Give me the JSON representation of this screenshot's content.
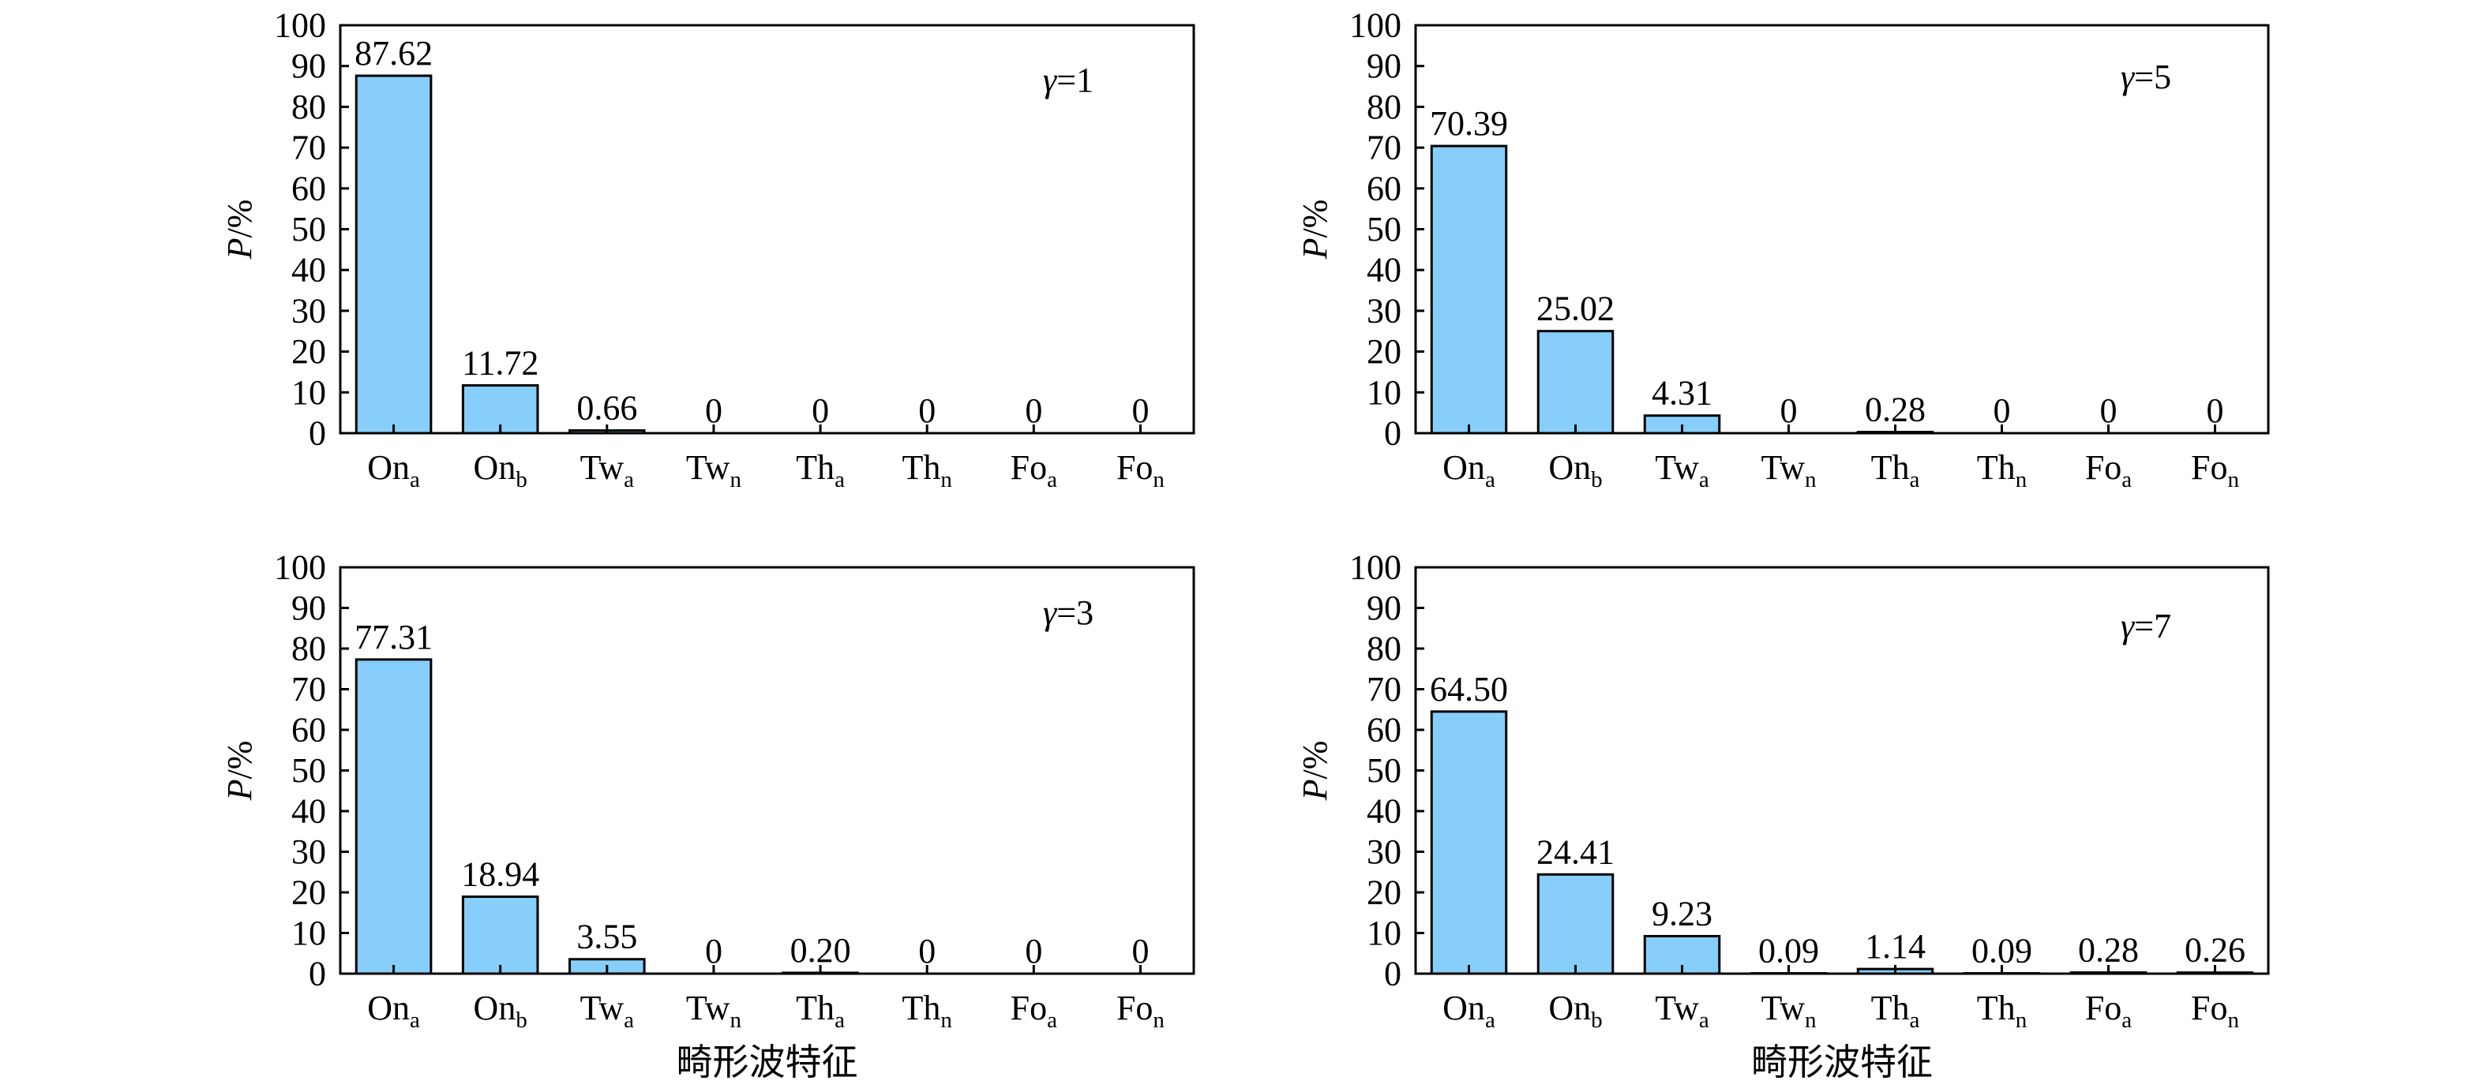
{
  "colors": {
    "bar_fill": "#87cefa",
    "bar_stroke": "#000000",
    "axis": "#000000",
    "background": "#ffffff"
  },
  "chart_data": [
    {
      "type": "bar",
      "annotation": {
        "symbol": "γ",
        "text": "=1"
      },
      "categories": [
        {
          "base": "On",
          "sub": "a"
        },
        {
          "base": "On",
          "sub": "b"
        },
        {
          "base": "Tw",
          "sub": "a"
        },
        {
          "base": "Tw",
          "sub": "n"
        },
        {
          "base": "Th",
          "sub": "a"
        },
        {
          "base": "Th",
          "sub": "n"
        },
        {
          "base": "Fo",
          "sub": "a"
        },
        {
          "base": "Fo",
          "sub": "n"
        }
      ],
      "values": [
        87.62,
        11.72,
        0.66,
        0,
        0,
        0,
        0,
        0
      ],
      "labels": [
        "87.62",
        "11.72",
        "0.66",
        "0",
        "0",
        "0",
        "0",
        "0"
      ],
      "ylabel": {
        "italic": "P",
        "rest": "/%"
      },
      "xlabel": "",
      "ylim": [
        0,
        100
      ],
      "yticks": [
        0,
        10,
        20,
        30,
        40,
        50,
        60,
        70,
        80,
        90,
        100
      ],
      "grid": false
    },
    {
      "type": "bar",
      "annotation": {
        "symbol": "γ",
        "text": "=5"
      },
      "categories": [
        {
          "base": "On",
          "sub": "a"
        },
        {
          "base": "On",
          "sub": "b"
        },
        {
          "base": "Tw",
          "sub": "a"
        },
        {
          "base": "Tw",
          "sub": "n"
        },
        {
          "base": "Th",
          "sub": "a"
        },
        {
          "base": "Th",
          "sub": "n"
        },
        {
          "base": "Fo",
          "sub": "a"
        },
        {
          "base": "Fo",
          "sub": "n"
        }
      ],
      "values": [
        70.39,
        25.02,
        4.31,
        0,
        0.28,
        0,
        0,
        0
      ],
      "labels": [
        "70.39",
        "25.02",
        "4.31",
        "0",
        "0.28",
        "0",
        "0",
        "0"
      ],
      "ylabel": {
        "italic": "P",
        "rest": "/%"
      },
      "xlabel": "",
      "ylim": [
        0,
        100
      ],
      "yticks": [
        0,
        10,
        20,
        30,
        40,
        50,
        60,
        70,
        80,
        90,
        100
      ],
      "grid": false
    },
    {
      "type": "bar",
      "annotation": {
        "symbol": "γ",
        "text": "=3"
      },
      "categories": [
        {
          "base": "On",
          "sub": "a"
        },
        {
          "base": "On",
          "sub": "b"
        },
        {
          "base": "Tw",
          "sub": "a"
        },
        {
          "base": "Tw",
          "sub": "n"
        },
        {
          "base": "Th",
          "sub": "a"
        },
        {
          "base": "Th",
          "sub": "n"
        },
        {
          "base": "Fo",
          "sub": "a"
        },
        {
          "base": "Fo",
          "sub": "n"
        }
      ],
      "values": [
        77.31,
        18.94,
        3.55,
        0,
        0.2,
        0,
        0,
        0
      ],
      "labels": [
        "77.31",
        "18.94",
        "3.55",
        "0",
        "0.20",
        "0",
        "0",
        "0"
      ],
      "ylabel": {
        "italic": "P",
        "rest": "/%"
      },
      "xlabel": "畸形波特征",
      "ylim": [
        0,
        100
      ],
      "yticks": [
        0,
        10,
        20,
        30,
        40,
        50,
        60,
        70,
        80,
        90,
        100
      ],
      "grid": false
    },
    {
      "type": "bar",
      "annotation": {
        "symbol": "γ",
        "text": "=7"
      },
      "categories": [
        {
          "base": "On",
          "sub": "a"
        },
        {
          "base": "On",
          "sub": "b"
        },
        {
          "base": "Tw",
          "sub": "a"
        },
        {
          "base": "Tw",
          "sub": "n"
        },
        {
          "base": "Th",
          "sub": "a"
        },
        {
          "base": "Th",
          "sub": "n"
        },
        {
          "base": "Fo",
          "sub": "a"
        },
        {
          "base": "Fo",
          "sub": "n"
        }
      ],
      "values": [
        64.5,
        24.41,
        9.23,
        0.09,
        1.14,
        0.09,
        0.28,
        0.26
      ],
      "labels": [
        "64.50",
        "24.41",
        "9.23",
        "0.09",
        "1.14",
        "0.09",
        "0.28",
        "0.26"
      ],
      "ylabel": {
        "italic": "P",
        "rest": "/%"
      },
      "xlabel": "畸形波特征",
      "ylim": [
        0,
        100
      ],
      "yticks": [
        0,
        10,
        20,
        30,
        40,
        50,
        60,
        70,
        80,
        90,
        100
      ],
      "grid": false
    }
  ]
}
